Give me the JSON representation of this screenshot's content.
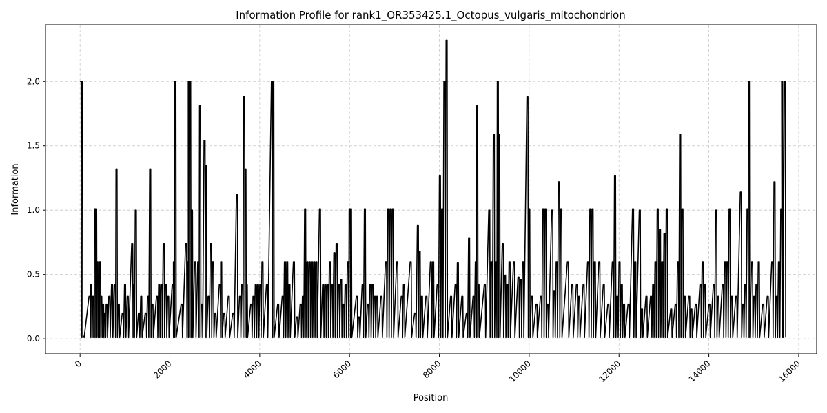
{
  "chart_data": {
    "type": "line",
    "title": "Information Profile for rank1_OR353425.1_Octopus_vulgaris_mitochondrion",
    "xlabel": "Position",
    "ylabel": "Information",
    "xlim": [
      -770,
      16400
    ],
    "ylim": [
      -0.117,
      2.44
    ],
    "xticks": [
      0,
      2000,
      4000,
      6000,
      8000,
      10000,
      12000,
      14000,
      16000
    ],
    "yticks": [
      0.0,
      0.5,
      1.0,
      1.5,
      2.0
    ],
    "xtick_labels": [
      "0",
      "2000",
      "4000",
      "6000",
      "8000",
      "10000",
      "12000",
      "14000",
      "16000"
    ],
    "ytick_labels": [
      "0.0",
      "0.5",
      "1.0",
      "1.5",
      "2.0"
    ],
    "xtick_rotation": 45,
    "grid": true,
    "line_color": "#000000",
    "baseline": 0.01,
    "spikes": [
      [
        0,
        2.0
      ],
      [
        30,
        2.0
      ],
      [
        60,
        0.02
      ],
      [
        200,
        0.33
      ],
      [
        230,
        0.42
      ],
      [
        260,
        0.33
      ],
      [
        290,
        0.33
      ],
      [
        320,
        1.01
      ],
      [
        345,
        1.01
      ],
      [
        375,
        0.6
      ],
      [
        400,
        0.42
      ],
      [
        430,
        0.6
      ],
      [
        460,
        0.33
      ],
      [
        500,
        0.27
      ],
      [
        540,
        0.2
      ],
      [
        580,
        0.27
      ],
      [
        640,
        0.33
      ],
      [
        700,
        0.42
      ],
      [
        760,
        0.42
      ],
      [
        800,
        1.32
      ],
      [
        850,
        0.27
      ],
      [
        940,
        0.2
      ],
      [
        990,
        0.42
      ],
      [
        1050,
        0.33
      ],
      [
        1150,
        0.74
      ],
      [
        1180,
        0.42
      ],
      [
        1230,
        1.0
      ],
      [
        1300,
        0.2
      ],
      [
        1350,
        0.33
      ],
      [
        1450,
        0.2
      ],
      [
        1500,
        0.33
      ],
      [
        1550,
        1.32
      ],
      [
        1600,
        0.27
      ],
      [
        1700,
        0.33
      ],
      [
        1750,
        0.42
      ],
      [
        1800,
        0.42
      ],
      [
        1850,
        0.74
      ],
      [
        1900,
        0.42
      ],
      [
        1950,
        0.33
      ],
      [
        2050,
        0.42
      ],
      [
        2080,
        0.6
      ],
      [
        2110,
        2.0
      ],
      [
        2250,
        0.27
      ],
      [
        2350,
        0.74
      ],
      [
        2380,
        0.6
      ],
      [
        2410,
        2.0
      ],
      [
        2440,
        2.0
      ],
      [
        2480,
        1.0
      ],
      [
        2550,
        0.6
      ],
      [
        2620,
        0.6
      ],
      [
        2660,
        1.81
      ],
      [
        2700,
        0.27
      ],
      [
        2760,
        1.54
      ],
      [
        2790,
        1.35
      ],
      [
        2850,
        0.33
      ],
      [
        2900,
        0.74
      ],
      [
        2950,
        0.6
      ],
      [
        3000,
        0.2
      ],
      [
        3100,
        0.42
      ],
      [
        3130,
        0.6
      ],
      [
        3200,
        0.2
      ],
      [
        3300,
        0.33
      ],
      [
        3400,
        0.2
      ],
      [
        3480,
        1.12
      ],
      [
        3550,
        0.33
      ],
      [
        3600,
        0.42
      ],
      [
        3640,
        1.88
      ],
      [
        3670,
        1.32
      ],
      [
        3700,
        0.42
      ],
      [
        3800,
        0.27
      ],
      [
        3850,
        0.33
      ],
      [
        3900,
        0.42
      ],
      [
        3950,
        0.42
      ],
      [
        4000,
        0.42
      ],
      [
        4050,
        0.6
      ],
      [
        4150,
        0.42
      ],
      [
        4260,
        2.0
      ],
      [
        4290,
        2.0
      ],
      [
        4400,
        0.27
      ],
      [
        4500,
        0.33
      ],
      [
        4550,
        0.6
      ],
      [
        4600,
        0.6
      ],
      [
        4650,
        0.42
      ],
      [
        4750,
        0.6
      ],
      [
        4820,
        0.17
      ],
      [
        4900,
        0.27
      ],
      [
        4950,
        0.33
      ],
      [
        5000,
        1.01
      ],
      [
        5050,
        0.6
      ],
      [
        5100,
        0.6
      ],
      [
        5150,
        0.6
      ],
      [
        5200,
        0.6
      ],
      [
        5250,
        0.6
      ],
      [
        5330,
        1.01
      ],
      [
        5400,
        0.42
      ],
      [
        5450,
        0.42
      ],
      [
        5500,
        0.42
      ],
      [
        5550,
        0.6
      ],
      [
        5600,
        0.42
      ],
      [
        5650,
        0.67
      ],
      [
        5700,
        0.74
      ],
      [
        5750,
        0.42
      ],
      [
        5800,
        0.46
      ],
      [
        5850,
        0.27
      ],
      [
        5900,
        0.42
      ],
      [
        5950,
        0.6
      ],
      [
        5990,
        1.01
      ],
      [
        6020,
        1.01
      ],
      [
        6150,
        0.33
      ],
      [
        6200,
        0.17
      ],
      [
        6280,
        0.42
      ],
      [
        6330,
        1.01
      ],
      [
        6400,
        0.27
      ],
      [
        6450,
        0.42
      ],
      [
        6500,
        0.42
      ],
      [
        6550,
        0.33
      ],
      [
        6600,
        0.33
      ],
      [
        6700,
        0.33
      ],
      [
        6800,
        0.6
      ],
      [
        6850,
        1.01
      ],
      [
        6900,
        1.01
      ],
      [
        6950,
        1.01
      ],
      [
        7050,
        0.6
      ],
      [
        7150,
        0.33
      ],
      [
        7200,
        0.42
      ],
      [
        7350,
        0.6
      ],
      [
        7450,
        0.2
      ],
      [
        7510,
        0.88
      ],
      [
        7550,
        0.68
      ],
      [
        7600,
        0.33
      ],
      [
        7700,
        0.33
      ],
      [
        7800,
        0.6
      ],
      [
        7850,
        0.6
      ],
      [
        7950,
        0.42
      ],
      [
        8000,
        1.27
      ],
      [
        8050,
        1.01
      ],
      [
        8100,
        2.0
      ],
      [
        8150,
        2.32
      ],
      [
        8250,
        0.33
      ],
      [
        8350,
        0.42
      ],
      [
        8400,
        0.59
      ],
      [
        8500,
        0.33
      ],
      [
        8600,
        0.2
      ],
      [
        8650,
        0.78
      ],
      [
        8750,
        0.33
      ],
      [
        8800,
        0.6
      ],
      [
        8830,
        1.81
      ],
      [
        8860,
        0.42
      ],
      [
        9000,
        0.42
      ],
      [
        9100,
        1.0
      ],
      [
        9150,
        0.6
      ],
      [
        9200,
        1.59
      ],
      [
        9250,
        0.6
      ],
      [
        9290,
        2.0
      ],
      [
        9320,
        1.59
      ],
      [
        9400,
        0.74
      ],
      [
        9450,
        0.49
      ],
      [
        9500,
        0.42
      ],
      [
        9550,
        0.6
      ],
      [
        9650,
        0.6
      ],
      [
        9750,
        0.48
      ],
      [
        9800,
        0.46
      ],
      [
        9850,
        0.6
      ],
      [
        9950,
        1.88
      ],
      [
        9990,
        1.01
      ],
      [
        10050,
        0.33
      ],
      [
        10150,
        0.27
      ],
      [
        10250,
        0.33
      ],
      [
        10300,
        1.01
      ],
      [
        10350,
        1.01
      ],
      [
        10400,
        0.27
      ],
      [
        10500,
        1.0
      ],
      [
        10550,
        0.37
      ],
      [
        10600,
        0.6
      ],
      [
        10650,
        1.22
      ],
      [
        10700,
        1.01
      ],
      [
        10850,
        0.6
      ],
      [
        10950,
        0.42
      ],
      [
        11050,
        0.42
      ],
      [
        11100,
        0.33
      ],
      [
        11200,
        0.42
      ],
      [
        11300,
        0.6
      ],
      [
        11350,
        1.01
      ],
      [
        11400,
        1.01
      ],
      [
        11450,
        0.6
      ],
      [
        11550,
        0.6
      ],
      [
        11650,
        0.42
      ],
      [
        11750,
        0.27
      ],
      [
        11850,
        0.6
      ],
      [
        11900,
        1.27
      ],
      [
        11950,
        0.33
      ],
      [
        12000,
        0.6
      ],
      [
        12050,
        0.42
      ],
      [
        12100,
        0.27
      ],
      [
        12200,
        0.27
      ],
      [
        12300,
        1.01
      ],
      [
        12350,
        0.6
      ],
      [
        12450,
        1.0
      ],
      [
        12500,
        0.23
      ],
      [
        12600,
        0.33
      ],
      [
        12700,
        0.33
      ],
      [
        12750,
        0.42
      ],
      [
        12800,
        0.6
      ],
      [
        12850,
        1.01
      ],
      [
        12900,
        0.85
      ],
      [
        12950,
        0.6
      ],
      [
        13000,
        0.82
      ],
      [
        13050,
        1.01
      ],
      [
        13150,
        0.23
      ],
      [
        13250,
        0.27
      ],
      [
        13300,
        0.6
      ],
      [
        13350,
        1.59
      ],
      [
        13400,
        1.01
      ],
      [
        13450,
        0.33
      ],
      [
        13550,
        0.33
      ],
      [
        13600,
        0.23
      ],
      [
        13700,
        0.27
      ],
      [
        13800,
        0.42
      ],
      [
        13850,
        0.6
      ],
      [
        13900,
        0.42
      ],
      [
        14000,
        0.27
      ],
      [
        14100,
        0.42
      ],
      [
        14150,
        1.0
      ],
      [
        14200,
        0.33
      ],
      [
        14300,
        0.42
      ],
      [
        14350,
        0.6
      ],
      [
        14400,
        0.6
      ],
      [
        14450,
        1.01
      ],
      [
        14500,
        0.33
      ],
      [
        14600,
        0.33
      ],
      [
        14700,
        1.14
      ],
      [
        14750,
        0.27
      ],
      [
        14800,
        0.42
      ],
      [
        14850,
        1.01
      ],
      [
        14880,
        2.0
      ],
      [
        14950,
        0.6
      ],
      [
        15000,
        0.33
      ],
      [
        15050,
        0.42
      ],
      [
        15100,
        0.6
      ],
      [
        15200,
        0.27
      ],
      [
        15300,
        0.33
      ],
      [
        15400,
        0.6
      ],
      [
        15450,
        1.22
      ],
      [
        15500,
        0.33
      ],
      [
        15550,
        0.6
      ],
      [
        15600,
        1.01
      ],
      [
        15620,
        2.0
      ],
      [
        15680,
        2.0
      ]
    ]
  }
}
